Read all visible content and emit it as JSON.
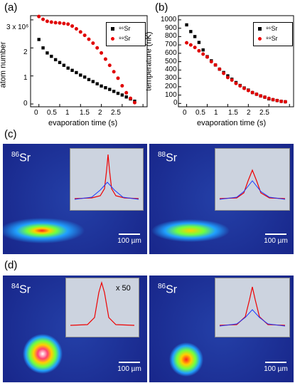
{
  "panel_labels": {
    "a": "(a)",
    "b": "(b)",
    "c": "(c)",
    "d": "(d)"
  },
  "chart_data": [
    {
      "type": "scatter",
      "xlabel": "evaporation time (s)",
      "ylabel": "atom number",
      "xlim": [
        -0.2,
        2.6
      ],
      "ylim": [
        -0.1,
        3.15
      ],
      "x_ticks": [
        "0",
        "0.5",
        "1",
        "1.5",
        "2",
        "2.5"
      ],
      "y_ticks": [
        "0",
        "1",
        "2",
        "3 x 10⁶"
      ],
      "legend": [
        "⁸⁶Sr",
        "⁸⁸Sr"
      ],
      "series": [
        {
          "name": "⁸⁶Sr",
          "marker": "square",
          "color": "#000000",
          "x": [
            0,
            0.1,
            0.2,
            0.3,
            0.4,
            0.5,
            0.6,
            0.7,
            0.8,
            0.9,
            1.0,
            1.1,
            1.2,
            1.3,
            1.4,
            1.5,
            1.6,
            1.7,
            1.8,
            1.9,
            2.0,
            2.1,
            2.2,
            2.3
          ],
          "y": [
            2.3,
            2.0,
            1.82,
            1.7,
            1.58,
            1.48,
            1.38,
            1.28,
            1.2,
            1.12,
            1.03,
            0.96,
            0.87,
            0.8,
            0.72,
            0.64,
            0.58,
            0.52,
            0.45,
            0.38,
            0.32,
            0.25,
            0.18,
            0.1
          ]
        },
        {
          "name": "⁸⁸Sr",
          "marker": "circle",
          "color": "#e00000",
          "x": [
            0,
            0.1,
            0.2,
            0.3,
            0.4,
            0.5,
            0.6,
            0.7,
            0.8,
            0.9,
            1.0,
            1.1,
            1.2,
            1.3,
            1.4,
            1.5,
            1.6,
            1.7,
            1.8,
            1.9,
            2.0,
            2.1,
            2.2,
            2.3
          ],
          "y": [
            3.12,
            3.02,
            2.95,
            2.92,
            2.9,
            2.89,
            2.87,
            2.85,
            2.78,
            2.68,
            2.57,
            2.45,
            2.31,
            2.17,
            2.0,
            1.82,
            1.6,
            1.38,
            1.15,
            0.92,
            0.65,
            0.4,
            0.2,
            0.05
          ]
        }
      ]
    },
    {
      "type": "scatter",
      "xlabel": "evaporation time (s)",
      "ylabel": "temperature (nK)",
      "xlim": [
        -0.2,
        2.6
      ],
      "ylim": [
        -40,
        1050
      ],
      "x_ticks": [
        "0",
        "0.5",
        "1",
        "1.5",
        "2",
        "2.5"
      ],
      "y_ticks": [
        "0",
        "100",
        "200",
        "300",
        "400",
        "500",
        "600",
        "700",
        "800",
        "900",
        "1000"
      ],
      "legend": [
        "⁸⁶Sr",
        "⁸⁸Sr"
      ],
      "series": [
        {
          "name": "⁸⁶Sr",
          "marker": "square",
          "color": "#000000",
          "x": [
            0,
            0.1,
            0.2,
            0.3,
            0.4,
            0.5,
            0.6,
            0.7,
            0.8,
            0.9,
            1.0,
            1.1,
            1.2,
            1.3,
            1.4,
            1.5,
            1.6,
            1.7,
            1.8,
            1.9,
            2.0,
            2.1,
            2.2,
            2.3,
            2.4
          ],
          "y": [
            940,
            860,
            800,
            730,
            640,
            560,
            510,
            460,
            410,
            370,
            330,
            290,
            250,
            215,
            185,
            160,
            130,
            110,
            90,
            75,
            55,
            45,
            35,
            25,
            20
          ]
        },
        {
          "name": "⁸⁸Sr",
          "marker": "circle",
          "color": "#e00000",
          "x": [
            0,
            0.1,
            0.2,
            0.3,
            0.4,
            0.5,
            0.6,
            0.7,
            0.8,
            0.9,
            1.0,
            1.1,
            1.2,
            1.3,
            1.4,
            1.5,
            1.6,
            1.7,
            1.8,
            1.9,
            2.0,
            2.1,
            2.2,
            2.3,
            2.4
          ],
          "y": [
            725,
            700,
            670,
            630,
            590,
            555,
            500,
            460,
            410,
            360,
            310,
            280,
            240,
            210,
            180,
            155,
            130,
            110,
            90,
            75,
            60,
            45,
            35,
            25,
            20
          ]
        }
      ]
    }
  ],
  "images": [
    {
      "isotope_mass": "86",
      "isotope_symbol": "Sr",
      "scale_bar": "100 µm",
      "inset_note": ""
    },
    {
      "isotope_mass": "88",
      "isotope_symbol": "Sr",
      "scale_bar": "100 µm",
      "inset_note": ""
    },
    {
      "isotope_mass": "84",
      "isotope_symbol": "Sr",
      "scale_bar": "100 µm",
      "inset_note": "x 50"
    },
    {
      "isotope_mass": "86",
      "isotope_symbol": "Sr",
      "scale_bar": "100 µm",
      "inset_note": ""
    }
  ],
  "colors": {
    "image_background": "#1a2a8a",
    "inset_background": "#ccd3df",
    "fit_red": "#e00000",
    "fit_blue": "#1a3cff"
  }
}
